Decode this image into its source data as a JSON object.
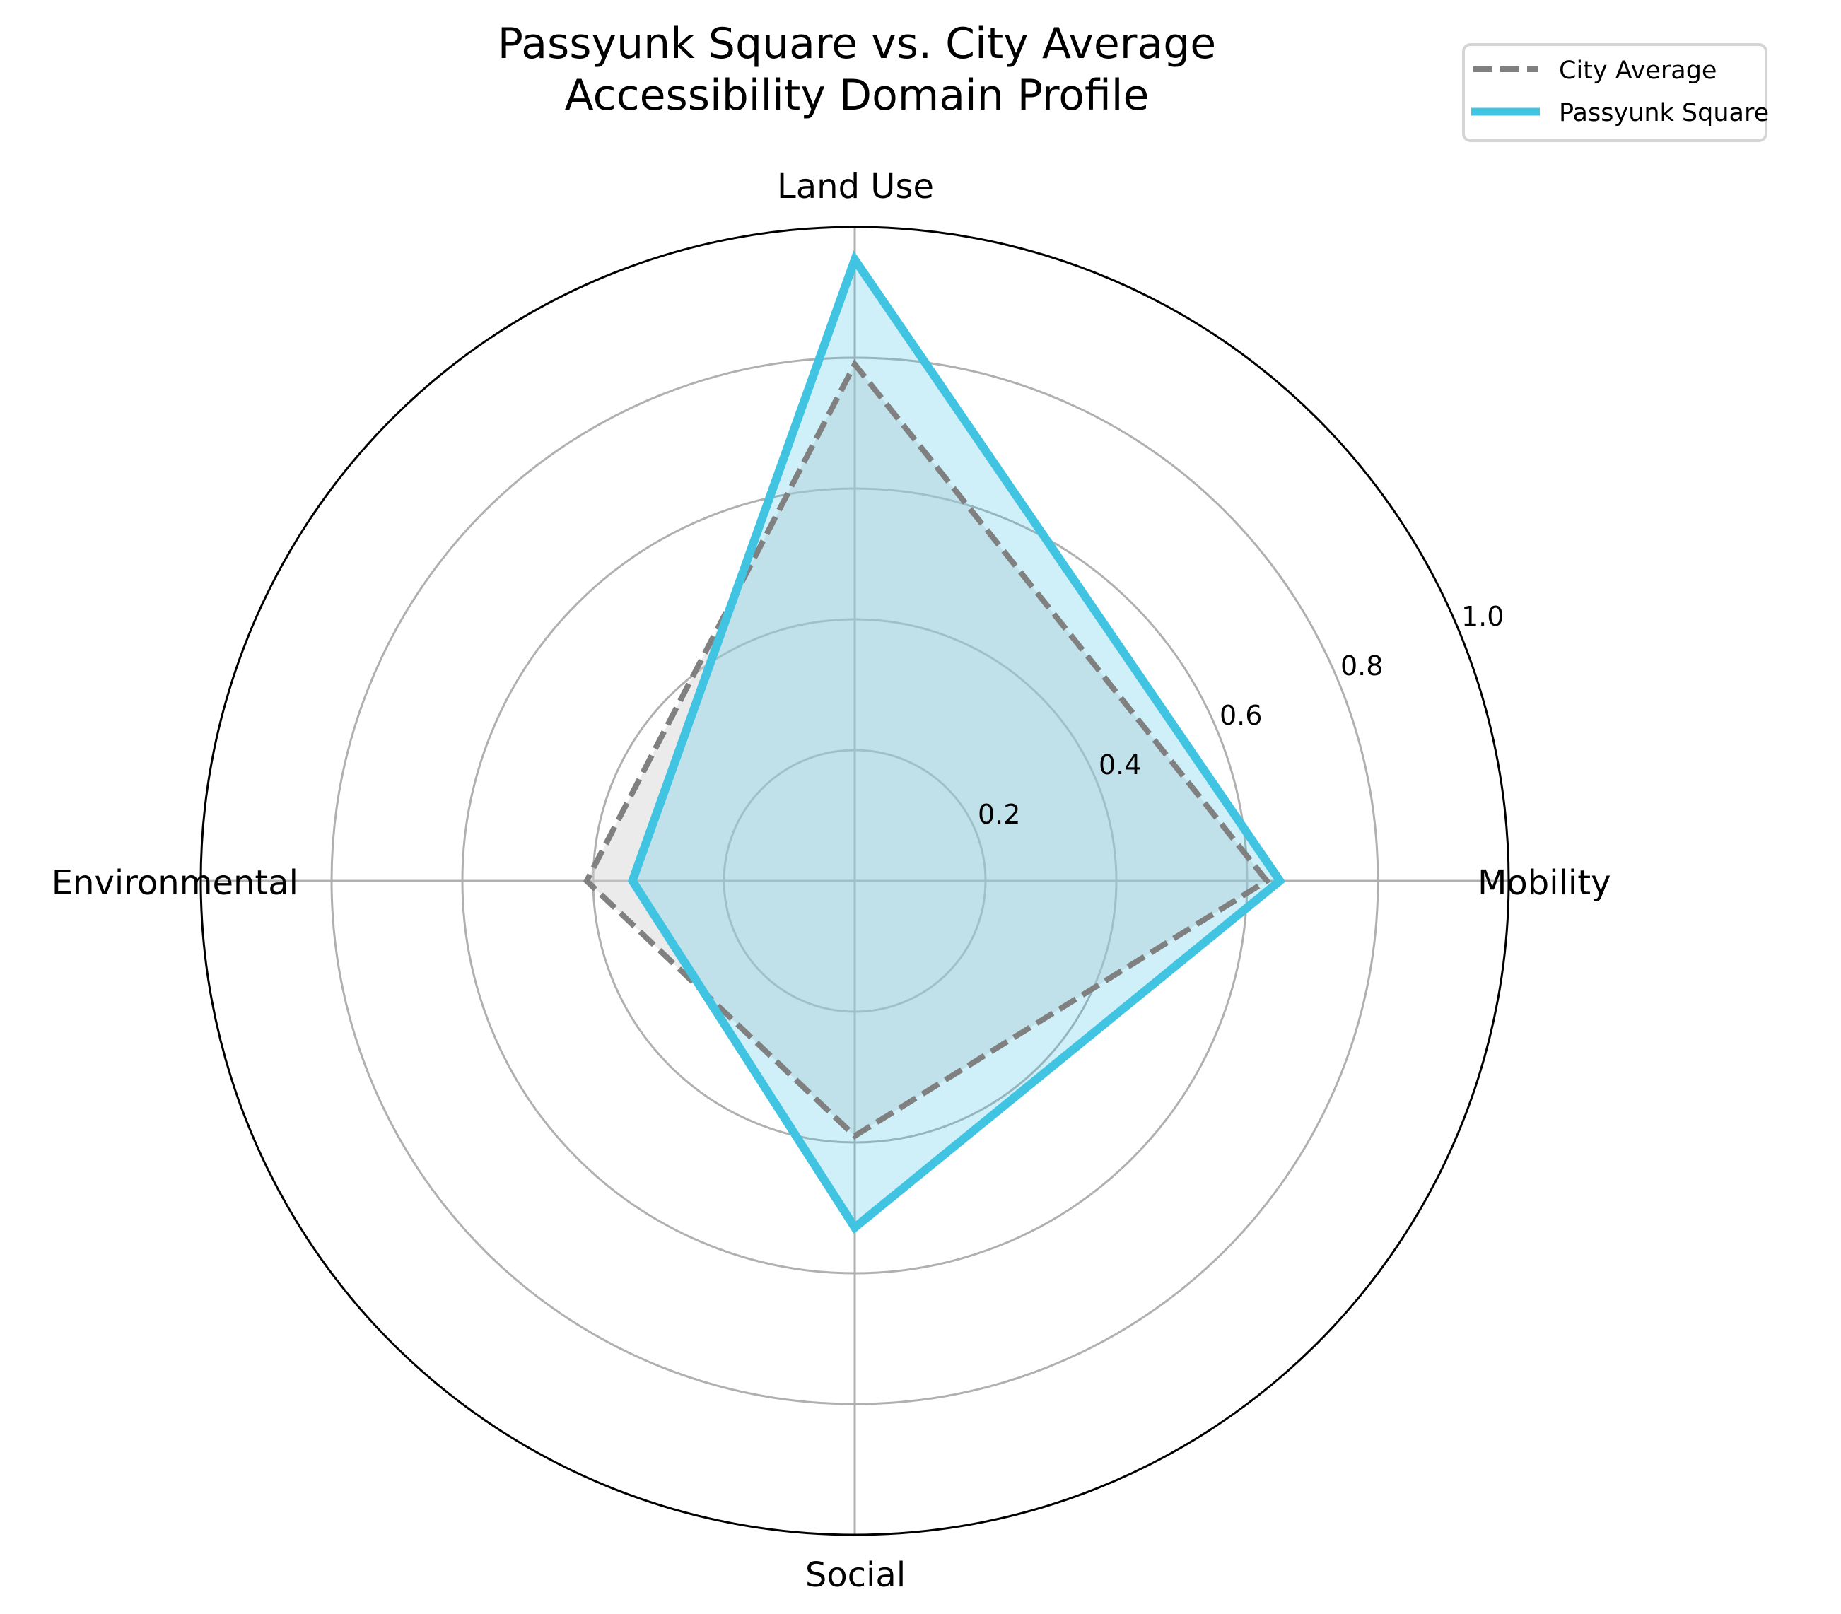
{
  "chart_data": {
    "type": "radar",
    "title": "Passyunk Square vs. City Average\nAccessibility Domain Profile",
    "title_lines": [
      "Passyunk Square vs. City Average",
      "Accessibility Domain Profile"
    ],
    "categories": [
      "Mobility",
      "Land Use",
      "Environmental",
      "Social"
    ],
    "series": [
      {
        "name": "City Average",
        "values": [
          0.63,
          0.79,
          0.41,
          0.39
        ],
        "line_style": "dashed",
        "line_color": "#808080",
        "fill_color": "#d3d3d3",
        "fill_opacity": 0.45
      },
      {
        "name": "Passyunk Square",
        "values": [
          0.65,
          0.95,
          0.34,
          0.53
        ],
        "line_style": "solid",
        "line_color": "#41c4e2",
        "fill_color": "#41c4e2",
        "fill_opacity": 0.25
      }
    ],
    "radial_ticks": [
      0.2,
      0.4,
      0.6,
      0.8,
      1.0
    ],
    "radial_tick_labels": [
      "0.2",
      "0.4",
      "0.6",
      "0.8",
      "1.0"
    ],
    "rlim": [
      0,
      1.0
    ],
    "grid": true,
    "legend_position": "upper right (outside)",
    "xlabel": "",
    "ylabel": ""
  },
  "legend": {
    "items": [
      {
        "label": "City Average",
        "color": "#808080",
        "style": "dashed"
      },
      {
        "label": "Passyunk Square",
        "color": "#41c4e2",
        "style": "solid"
      }
    ]
  },
  "colors": {
    "grid": "#b0b0b0",
    "outer_ring": "#000000",
    "legend_border": "#d5d5d5"
  }
}
